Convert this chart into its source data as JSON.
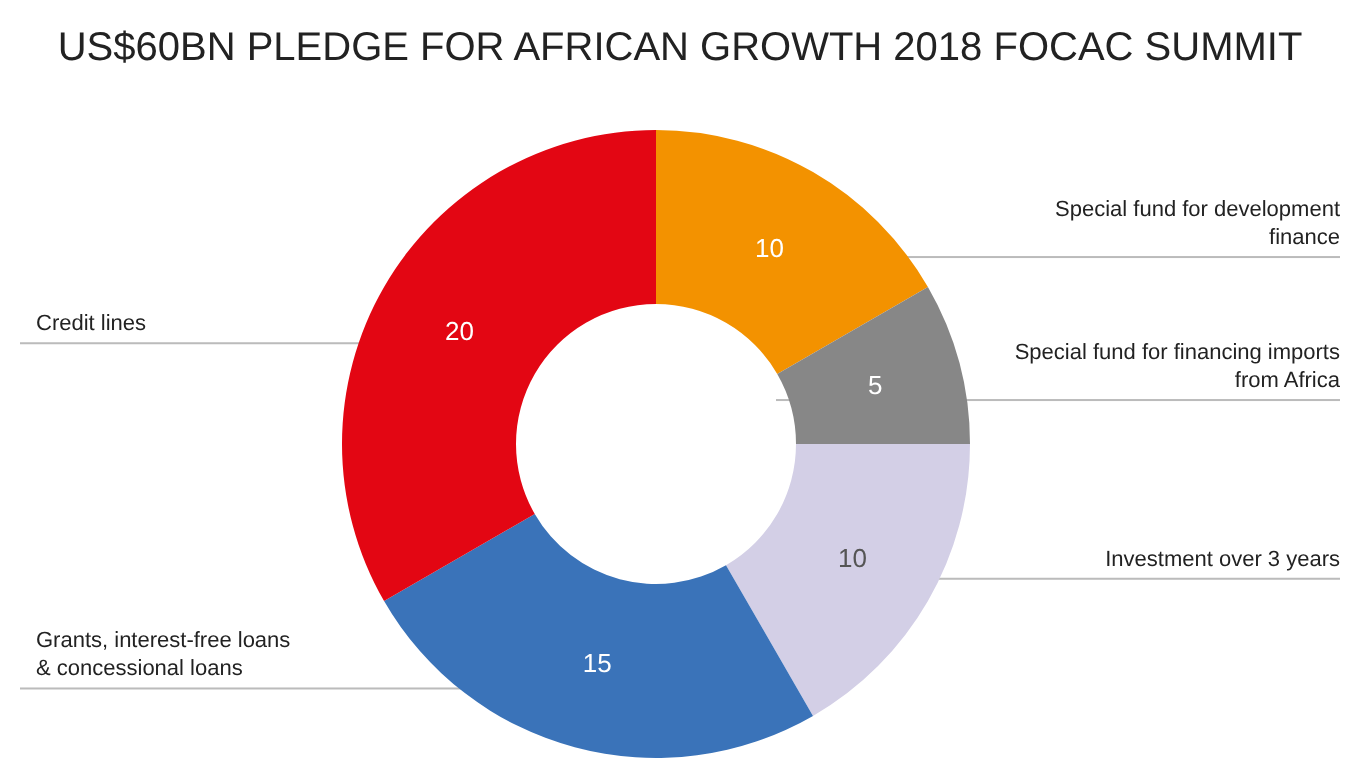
{
  "chart_data": {
    "type": "donut",
    "title": "US$60BN PLEDGE FOR AFRICAN GROWTH 2018 FOCAC SUMMIT",
    "categories": [
      "Special fund for development finance",
      "Special fund for financing imports from Africa",
      "Investment over 3 years",
      "Grants, interest-free loans & concessional loans",
      "Credit lines"
    ],
    "values": [
      10,
      5,
      10,
      15,
      20
    ],
    "colors": [
      "#f39200",
      "#878787",
      "#d3cfe6",
      "#3a73b9",
      "#e30613"
    ],
    "data_labels": true
  }
}
